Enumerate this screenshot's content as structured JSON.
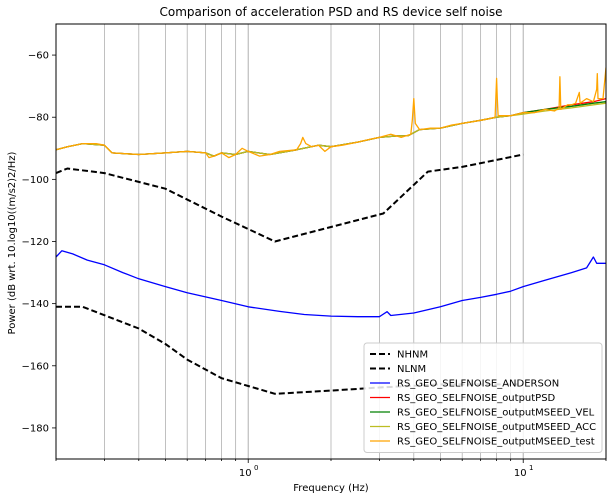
{
  "chart_data": {
    "type": "line",
    "title": "Comparison of acceleration PSD and RS device self noise",
    "xlabel": "Frequency (Hz)",
    "ylabel": "Power (dB wrt. 10.log10((m/s2)2/Hz)",
    "xscale": "log",
    "xlim": [
      0.2,
      20
    ],
    "ylim": [
      -190,
      -50
    ],
    "grid": "x-major-minor",
    "legend_position": "lower-right",
    "x_ticks": [
      {
        "value": 1,
        "base": "10",
        "exp": "0"
      },
      {
        "value": 10,
        "base": "10",
        "exp": "1"
      }
    ],
    "y_ticks": [
      {
        "value": -180,
        "label": "−180"
      },
      {
        "value": -160,
        "label": "−160"
      },
      {
        "value": -140,
        "label": "−140"
      },
      {
        "value": -120,
        "label": "−120"
      },
      {
        "value": -100,
        "label": "−100"
      },
      {
        "value": -80,
        "label": "−80"
      },
      {
        "value": -60,
        "label": "−60"
      }
    ],
    "series": [
      {
        "name": "NHNM",
        "color": "#000000",
        "style": "dashed",
        "points": [
          [
            0.2,
            -98
          ],
          [
            0.22,
            -96.5
          ],
          [
            0.3,
            -98
          ],
          [
            0.5,
            -103
          ],
          [
            0.8,
            -112
          ],
          [
            1.25,
            -120
          ],
          [
            3.1,
            -111
          ],
          [
            4.5,
            -97.5
          ],
          [
            6,
            -96
          ],
          [
            10,
            -92
          ]
        ]
      },
      {
        "name": "NLNM",
        "color": "#000000",
        "style": "dashed",
        "points": [
          [
            0.2,
            -141
          ],
          [
            0.25,
            -141
          ],
          [
            0.4,
            -148
          ],
          [
            0.5,
            -153
          ],
          [
            0.6,
            -158
          ],
          [
            0.8,
            -164
          ],
          [
            1.0,
            -166.5
          ],
          [
            1.25,
            -169
          ],
          [
            2.0,
            -168
          ],
          [
            3.0,
            -167
          ],
          [
            5.0,
            -166
          ],
          [
            7.0,
            -166
          ],
          [
            10.0,
            -166
          ]
        ]
      },
      {
        "name": "RS_GEO_SELFNOISE_ANDERSON",
        "color": "#0000ff",
        "style": "solid",
        "points": [
          [
            0.2,
            -125
          ],
          [
            0.21,
            -123
          ],
          [
            0.23,
            -124
          ],
          [
            0.26,
            -126
          ],
          [
            0.3,
            -127.5
          ],
          [
            0.35,
            -130
          ],
          [
            0.4,
            -132
          ],
          [
            0.5,
            -134.5
          ],
          [
            0.6,
            -136.5
          ],
          [
            0.8,
            -139
          ],
          [
            1.0,
            -141
          ],
          [
            1.3,
            -142.5
          ],
          [
            1.6,
            -143.5
          ],
          [
            2.0,
            -144
          ],
          [
            2.5,
            -144.2
          ],
          [
            3.0,
            -144.2
          ],
          [
            3.2,
            -142.6
          ],
          [
            3.3,
            -143.8
          ],
          [
            4.0,
            -143
          ],
          [
            5.0,
            -141
          ],
          [
            6.0,
            -139
          ],
          [
            7.0,
            -138
          ],
          [
            8.0,
            -137
          ],
          [
            9.0,
            -136
          ],
          [
            10.0,
            -134.5
          ],
          [
            12.0,
            -132.5
          ],
          [
            15.0,
            -130
          ],
          [
            17.0,
            -128.5
          ],
          [
            18.0,
            -125
          ],
          [
            18.5,
            -127
          ],
          [
            20.0,
            -127
          ]
        ]
      },
      {
        "name": "RS_GEO_SELFNOISE_outputPSD",
        "color": "#ff0000",
        "style": "solid",
        "points": [
          [
            0.2,
            -90.5
          ],
          [
            0.22,
            -89.5
          ],
          [
            0.25,
            -88.5
          ],
          [
            0.3,
            -89
          ],
          [
            0.32,
            -91.5
          ],
          [
            0.4,
            -92
          ],
          [
            0.5,
            -91.5
          ],
          [
            0.6,
            -91
          ],
          [
            0.7,
            -91.5
          ],
          [
            0.75,
            -92.5
          ],
          [
            0.8,
            -91.5
          ],
          [
            0.9,
            -92
          ],
          [
            1.0,
            -91
          ],
          [
            1.2,
            -92
          ],
          [
            1.5,
            -90.5
          ],
          [
            1.8,
            -89
          ],
          [
            2.0,
            -89.5
          ],
          [
            2.5,
            -88
          ],
          [
            3.0,
            -86.5
          ],
          [
            3.5,
            -86
          ],
          [
            3.8,
            -86
          ],
          [
            4.2,
            -84
          ],
          [
            5.0,
            -83.5
          ],
          [
            6.0,
            -82
          ],
          [
            7.0,
            -81
          ],
          [
            8.0,
            -80
          ],
          [
            9.0,
            -79.5
          ],
          [
            10.0,
            -78.5
          ],
          [
            12.0,
            -77.5
          ],
          [
            15.0,
            -76
          ],
          [
            18.0,
            -75
          ],
          [
            20.0,
            -74
          ]
        ]
      },
      {
        "name": "RS_GEO_SELFNOISE_outputMSEED_VEL",
        "color": "#008000",
        "style": "solid",
        "points": [
          [
            0.2,
            -90.5
          ],
          [
            0.22,
            -89.5
          ],
          [
            0.25,
            -88.5
          ],
          [
            0.3,
            -89
          ],
          [
            0.32,
            -91.5
          ],
          [
            0.4,
            -92
          ],
          [
            0.5,
            -91.5
          ],
          [
            0.6,
            -91
          ],
          [
            0.7,
            -91.5
          ],
          [
            0.75,
            -92.5
          ],
          [
            0.8,
            -91.5
          ],
          [
            0.9,
            -92
          ],
          [
            1.0,
            -91
          ],
          [
            1.2,
            -92
          ],
          [
            1.5,
            -90.5
          ],
          [
            1.8,
            -89
          ],
          [
            2.0,
            -89.5
          ],
          [
            2.5,
            -88
          ],
          [
            3.0,
            -86.5
          ],
          [
            3.5,
            -86
          ],
          [
            3.8,
            -86
          ],
          [
            4.2,
            -84
          ],
          [
            5.0,
            -83.5
          ],
          [
            6.0,
            -82
          ],
          [
            7.0,
            -81
          ],
          [
            8.0,
            -80
          ],
          [
            9.0,
            -79.5
          ],
          [
            10.0,
            -78.5
          ],
          [
            12.0,
            -77.5
          ],
          [
            15.0,
            -76.5
          ],
          [
            18.0,
            -75.5
          ],
          [
            20.0,
            -75
          ]
        ]
      },
      {
        "name": "RS_GEO_SELFNOISE_outputMSEED_ACC",
        "color": "#bcbd22",
        "style": "solid",
        "points": [
          [
            0.2,
            -90.5
          ],
          [
            0.22,
            -89.5
          ],
          [
            0.25,
            -88.5
          ],
          [
            0.3,
            -89
          ],
          [
            0.32,
            -91.5
          ],
          [
            0.4,
            -92
          ],
          [
            0.5,
            -91.5
          ],
          [
            0.6,
            -91
          ],
          [
            0.7,
            -91.5
          ],
          [
            0.75,
            -92.5
          ],
          [
            0.8,
            -91.5
          ],
          [
            0.9,
            -92
          ],
          [
            1.0,
            -91
          ],
          [
            1.2,
            -92
          ],
          [
            1.5,
            -90.5
          ],
          [
            1.8,
            -89
          ],
          [
            2.0,
            -89.5
          ],
          [
            2.5,
            -88
          ],
          [
            3.0,
            -86.5
          ],
          [
            3.5,
            -86
          ],
          [
            3.8,
            -86
          ],
          [
            4.2,
            -84
          ],
          [
            5.0,
            -83.5
          ],
          [
            6.0,
            -82
          ],
          [
            7.0,
            -81
          ],
          [
            8.0,
            -80
          ],
          [
            9.0,
            -79.5
          ],
          [
            10.0,
            -79
          ],
          [
            12.0,
            -78
          ],
          [
            15.0,
            -77
          ],
          [
            18.0,
            -76
          ],
          [
            20.0,
            -75.5
          ]
        ]
      },
      {
        "name": "RS_GEO_SELFNOISE_outputMSEED_test",
        "color": "#ffa500",
        "style": "solid",
        "points": [
          [
            0.2,
            -90.5
          ],
          [
            0.22,
            -89.5
          ],
          [
            0.25,
            -88.5
          ],
          [
            0.28,
            -88.5
          ],
          [
            0.3,
            -89
          ],
          [
            0.32,
            -91.5
          ],
          [
            0.4,
            -92
          ],
          [
            0.5,
            -91.5
          ],
          [
            0.6,
            -91
          ],
          [
            0.7,
            -91.5
          ],
          [
            0.72,
            -93
          ],
          [
            0.75,
            -92.5
          ],
          [
            0.8,
            -91.5
          ],
          [
            0.85,
            -93
          ],
          [
            0.9,
            -92
          ],
          [
            0.95,
            -90
          ],
          [
            1.0,
            -91
          ],
          [
            1.1,
            -92.5
          ],
          [
            1.2,
            -92
          ],
          [
            1.3,
            -91
          ],
          [
            1.5,
            -90.5
          ],
          [
            1.55,
            -88.5
          ],
          [
            1.58,
            -86.5
          ],
          [
            1.62,
            -88.5
          ],
          [
            1.7,
            -89.5
          ],
          [
            1.8,
            -89
          ],
          [
            1.9,
            -91
          ],
          [
            2.0,
            -89.5
          ],
          [
            2.2,
            -89
          ],
          [
            2.5,
            -88
          ],
          [
            2.8,
            -87
          ],
          [
            3.0,
            -86.5
          ],
          [
            3.3,
            -85.5
          ],
          [
            3.6,
            -86.5
          ],
          [
            3.9,
            -85.5
          ],
          [
            3.95,
            -81
          ],
          [
            4.0,
            -74
          ],
          [
            4.05,
            -82
          ],
          [
            4.2,
            -84
          ],
          [
            4.6,
            -83.5
          ],
          [
            5.0,
            -83.5
          ],
          [
            5.5,
            -82.5
          ],
          [
            6.0,
            -82
          ],
          [
            6.5,
            -81.5
          ],
          [
            7.0,
            -81
          ],
          [
            7.5,
            -80.5
          ],
          [
            7.9,
            -80
          ],
          [
            7.95,
            -74
          ],
          [
            8.0,
            -67.5
          ],
          [
            8.05,
            -74
          ],
          [
            8.1,
            -79.5
          ],
          [
            9.0,
            -79.5
          ],
          [
            10.0,
            -78.5
          ],
          [
            11.0,
            -78.5
          ],
          [
            12.0,
            -77.5
          ],
          [
            13.0,
            -78
          ],
          [
            13.5,
            -77
          ],
          [
            13.6,
            -67
          ],
          [
            13.7,
            -77.5
          ],
          [
            14.5,
            -76
          ],
          [
            15.0,
            -76
          ],
          [
            15.5,
            -75.5
          ],
          [
            16.0,
            -72
          ],
          [
            16.1,
            -75.5
          ],
          [
            17.0,
            -74
          ],
          [
            18.0,
            -75
          ],
          [
            18.5,
            -71
          ],
          [
            18.6,
            -66
          ],
          [
            18.7,
            -74
          ],
          [
            19.5,
            -74
          ],
          [
            20.0,
            -64
          ]
        ]
      }
    ]
  }
}
